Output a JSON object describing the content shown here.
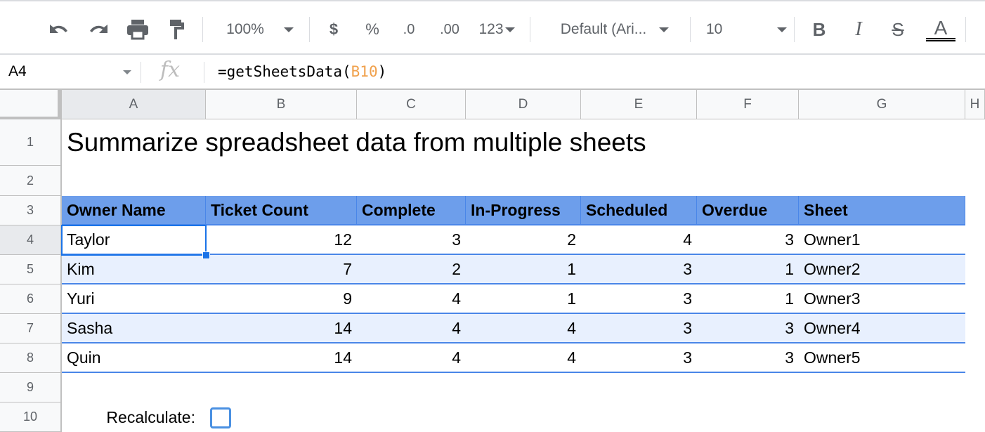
{
  "toolbar": {
    "icons": [
      "undo-icon",
      "redo-icon",
      "print-icon",
      "paint-format-icon"
    ],
    "zoom": "100%",
    "currency": "$",
    "percent": "%",
    "decrease_decimal": ".0",
    "increase_decimal": ".00",
    "more_formats": "123",
    "font": "Default (Ari...",
    "font_size": "10",
    "bold": "B",
    "italic": "I",
    "strikethrough": "S",
    "text_color": "A"
  },
  "formula_bar": {
    "name_box": "A4",
    "fx": "fx",
    "formula_prefix": "=getSheetsData(",
    "formula_ref": "B10",
    "formula_suffix": ")"
  },
  "columns": [
    "A",
    "B",
    "C",
    "D",
    "E",
    "F",
    "G",
    "H"
  ],
  "rows": [
    "1",
    "2",
    "3",
    "4",
    "5",
    "6",
    "7",
    "8",
    "9",
    "10"
  ],
  "selected_cell": "A4",
  "sheet": {
    "title": "Summarize spreadsheet data from multiple sheets",
    "headers": [
      "Owner Name",
      "Ticket Count",
      "Complete",
      "In-Progress",
      "Scheduled",
      "Overdue",
      "Sheet"
    ],
    "data": [
      [
        "Taylor",
        "12",
        "3",
        "2",
        "4",
        "3",
        "Owner1"
      ],
      [
        "Kim",
        "7",
        "2",
        "1",
        "3",
        "1",
        "Owner2"
      ],
      [
        "Yuri",
        "9",
        "4",
        "1",
        "3",
        "1",
        "Owner3"
      ],
      [
        "Sasha",
        "14",
        "4",
        "4",
        "3",
        "3",
        "Owner4"
      ],
      [
        "Quin",
        "14",
        "4",
        "4",
        "3",
        "3",
        "Owner5"
      ]
    ],
    "recalculate_label": "Recalculate:",
    "recalculate_checked": false
  },
  "colors": {
    "header_bg": "#6d9eeb",
    "stripe_bg": "#e8f0fe",
    "border": "#4a86e8",
    "selection": "#1a73e8",
    "formula_ref": "#f0a04b"
  }
}
